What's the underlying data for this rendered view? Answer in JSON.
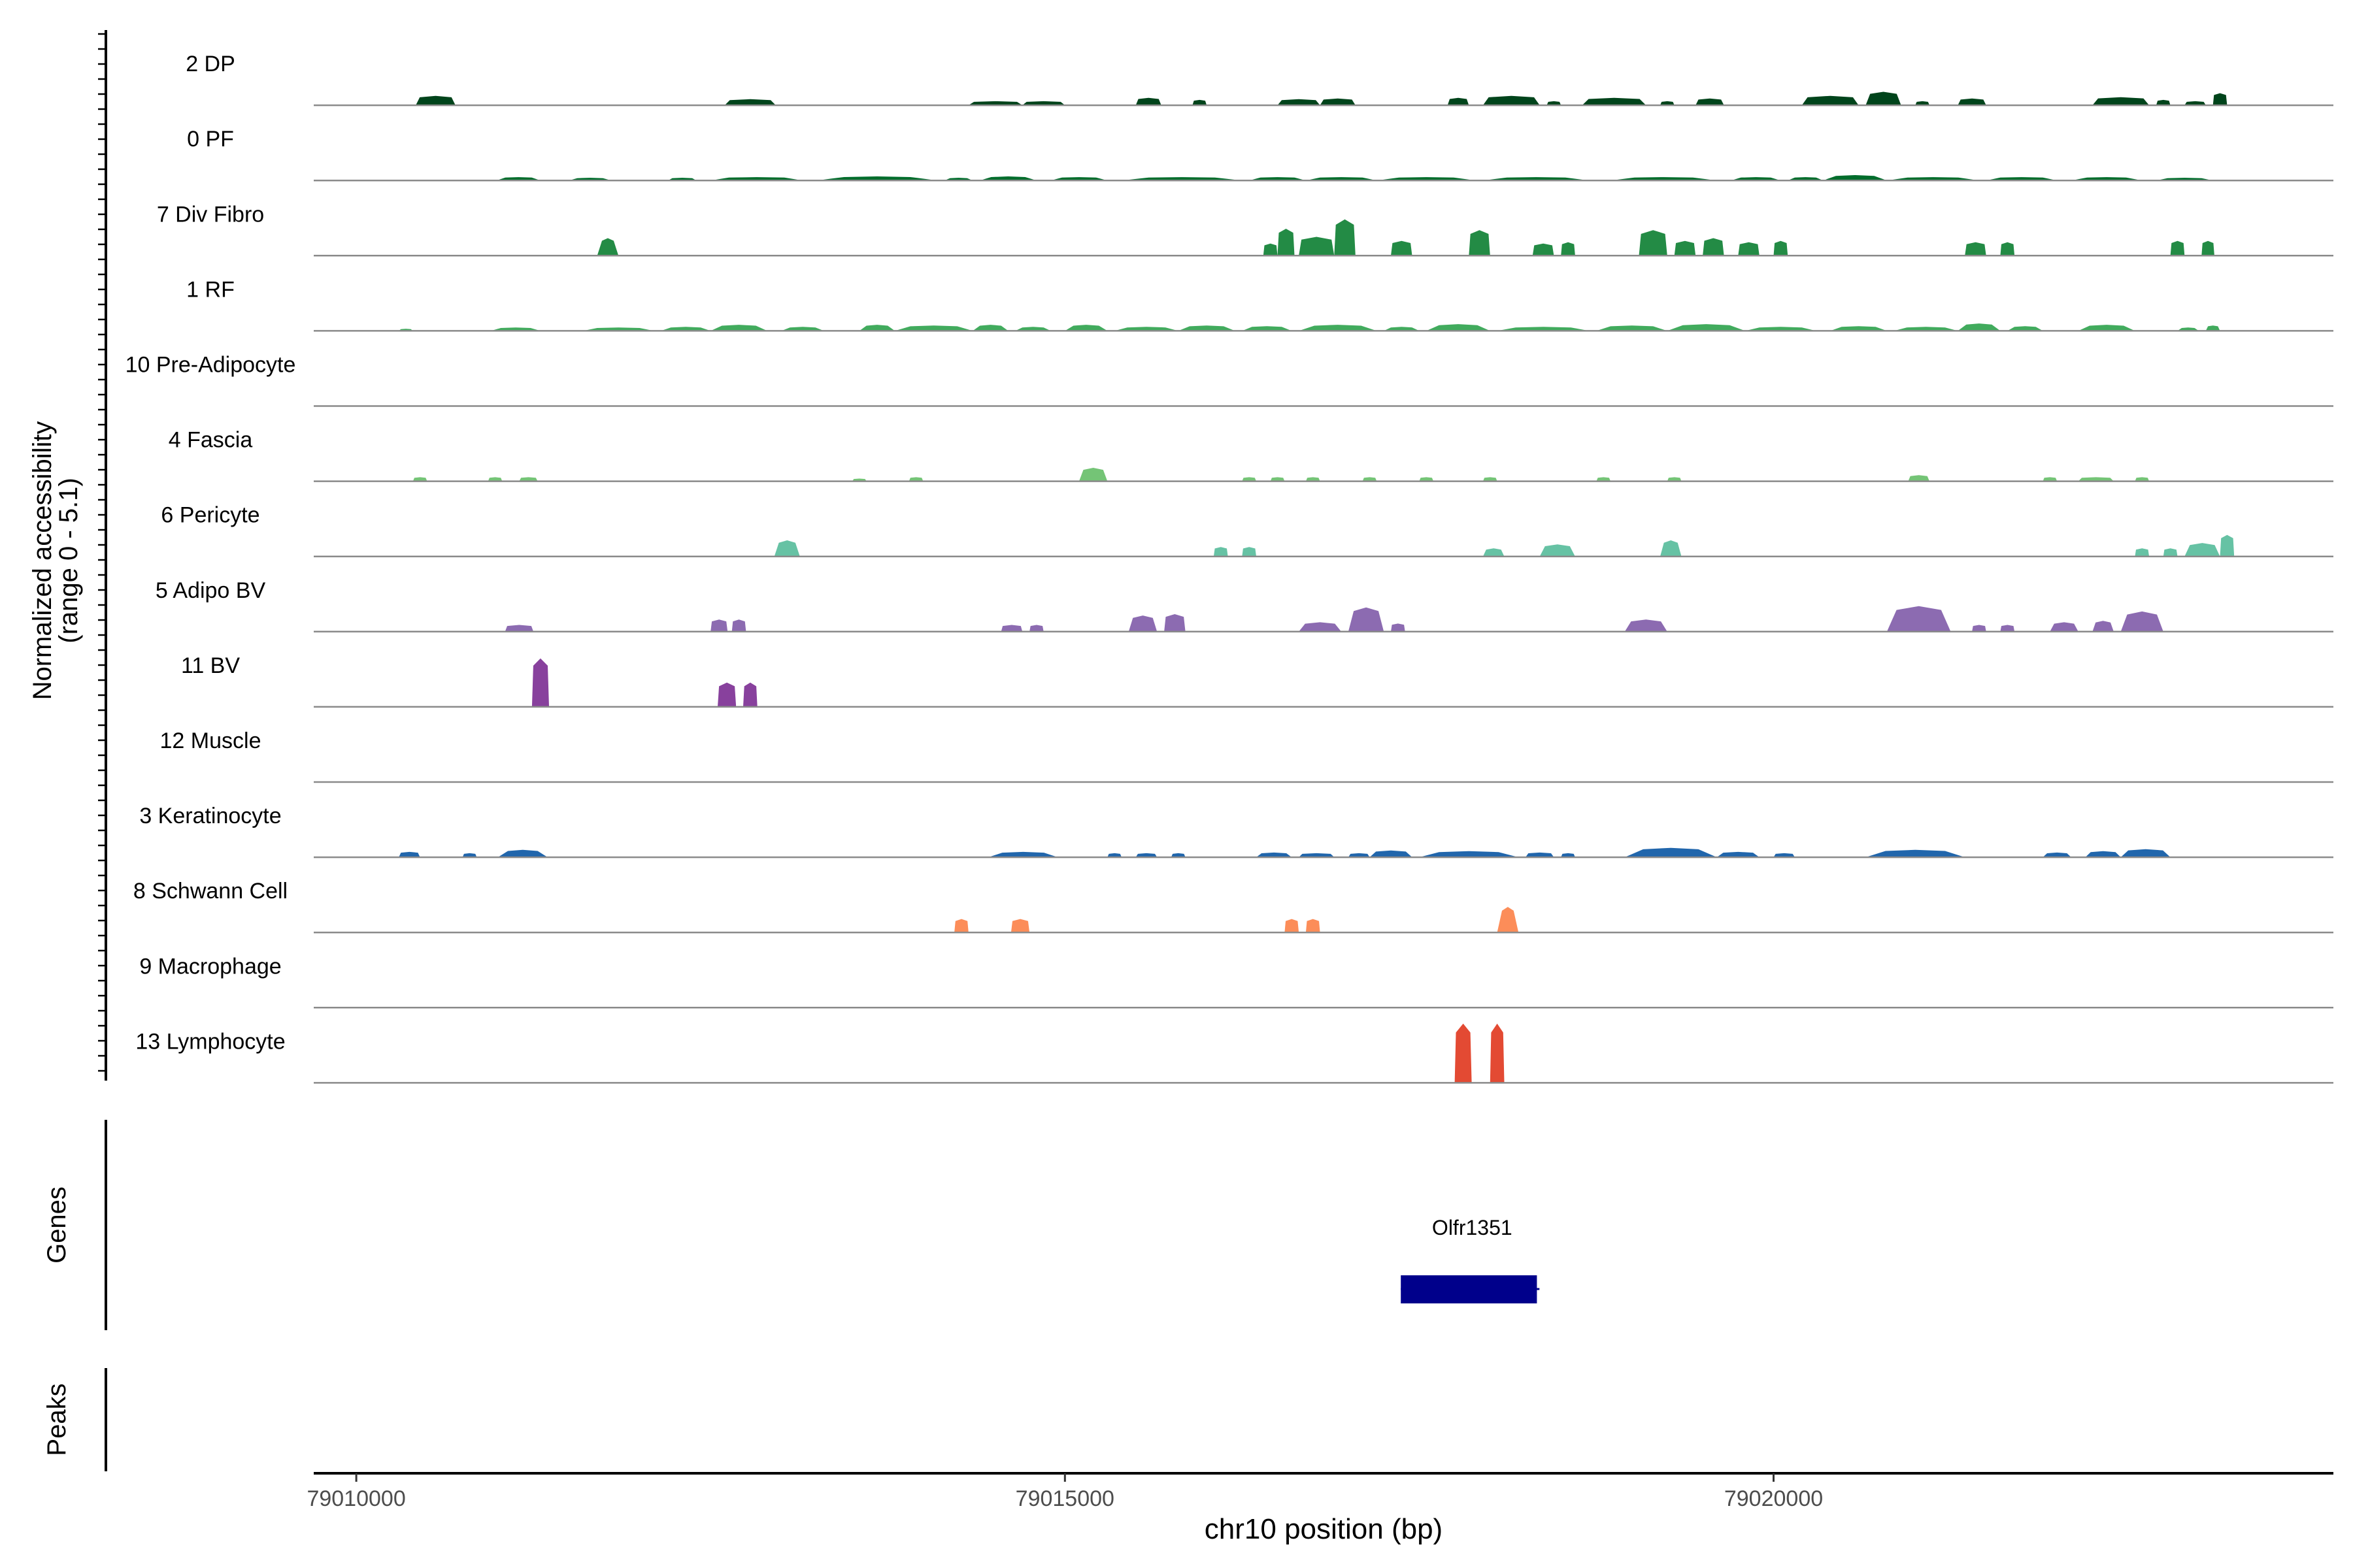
{
  "chart_data": {
    "type": "area",
    "panels": {
      "coverage_ylabel_line1": "Normalized accessibility",
      "coverage_ylabel_line2": "(range 0 - 5.1)",
      "genes_label": "Genes",
      "peaks_label": "Peaks"
    },
    "xlabel": "chr10 position (bp)",
    "xlim": [
      79009700,
      79023950
    ],
    "x_ticks": [
      79010000,
      79015000,
      79020000
    ],
    "ylim": [
      0,
      5.1
    ],
    "tracks": [
      {
        "name": "2 DP",
        "color": "#00441b",
        "peaks": [
          [
            79010420,
            79010700,
            0.7,
            0.2
          ],
          [
            79012600,
            79012960,
            0.45,
            0.2
          ],
          [
            79014320,
            79014700,
            0.3,
            0.2
          ],
          [
            79014700,
            79015000,
            0.3,
            0.2
          ],
          [
            79015500,
            79015680,
            0.55,
            0.2
          ],
          [
            79015900,
            79016000,
            0.4,
            0.2
          ],
          [
            79016500,
            79016800,
            0.45,
            0.2
          ],
          [
            79016800,
            79017050,
            0.5,
            0.2
          ],
          [
            79017700,
            79017850,
            0.55,
            0.2
          ],
          [
            79017950,
            79018350,
            0.7,
            0.2
          ],
          [
            79018400,
            79018500,
            0.3,
            0.2
          ],
          [
            79018650,
            79019100,
            0.55,
            0.2
          ],
          [
            79019200,
            79019300,
            0.3,
            0.2
          ],
          [
            79019450,
            79019650,
            0.5,
            0.2
          ],
          [
            79020200,
            79020600,
            0.7,
            0.2
          ],
          [
            79020650,
            79020900,
            1.0,
            0.25
          ],
          [
            79021000,
            79021100,
            0.3,
            0.2
          ],
          [
            79021300,
            79021500,
            0.5,
            0.2
          ],
          [
            79022250,
            79022650,
            0.6,
            0.2
          ],
          [
            79022700,
            79022800,
            0.4,
            0.2
          ],
          [
            79022900,
            79023050,
            0.3,
            0.2
          ],
          [
            79023100,
            79023200,
            0.9,
            0.15
          ]
        ]
      },
      {
        "name": "0 PF",
        "color": "#006d2c",
        "peaks": [
          [
            79010990,
            79011300,
            0.25,
            0.4
          ],
          [
            79011500,
            79011800,
            0.2,
            0.4
          ],
          [
            79012200,
            79012400,
            0.2,
            0.3
          ],
          [
            79012500,
            79013150,
            0.25,
            0.4
          ],
          [
            79013250,
            79014100,
            0.3,
            0.5
          ],
          [
            79014150,
            79014350,
            0.2,
            0.4
          ],
          [
            79014400,
            79014800,
            0.3,
            0.4
          ],
          [
            79014900,
            79015300,
            0.25,
            0.4
          ],
          [
            79015400,
            79016250,
            0.25,
            0.5
          ],
          [
            79016300,
            79016700,
            0.25,
            0.4
          ],
          [
            79016700,
            79017200,
            0.25,
            0.4
          ],
          [
            79017200,
            79017900,
            0.25,
            0.5
          ],
          [
            79017950,
            79018700,
            0.25,
            0.5
          ],
          [
            79018850,
            79019600,
            0.25,
            0.5
          ],
          [
            79019700,
            79020050,
            0.25,
            0.4
          ],
          [
            79020100,
            79020350,
            0.25,
            0.4
          ],
          [
            79020350,
            79020800,
            0.4,
            0.4
          ],
          [
            79020800,
            79021450,
            0.25,
            0.5
          ],
          [
            79021500,
            79022000,
            0.25,
            0.4
          ],
          [
            79022100,
            79022600,
            0.25,
            0.5
          ],
          [
            79022700,
            79023100,
            0.2,
            0.4
          ]
        ]
      },
      {
        "name": "7 Div Fibro",
        "color": "#238b45",
        "peaks": [
          [
            79011700,
            79011850,
            1.3,
            0.7
          ],
          [
            79016400,
            79016500,
            0.9,
            0.15
          ],
          [
            79016500,
            79016620,
            2.0,
            0.15
          ],
          [
            79016650,
            79016900,
            1.4,
            0.15
          ],
          [
            79016900,
            79017050,
            2.7,
            0.15
          ],
          [
            79017300,
            79017450,
            1.1,
            0.15
          ],
          [
            79017850,
            79018000,
            1.9,
            0.15
          ],
          [
            79018300,
            79018450,
            0.9,
            0.15
          ],
          [
            79018500,
            79018600,
            1.0,
            0.15
          ],
          [
            79019050,
            79019250,
            1.9,
            0.15
          ],
          [
            79019300,
            79019450,
            1.1,
            0.15
          ],
          [
            79019500,
            79019650,
            1.3,
            0.15
          ],
          [
            79019750,
            79019900,
            1.0,
            0.15
          ],
          [
            79020000,
            79020100,
            1.1,
            0.15
          ],
          [
            79021350,
            79021500,
            1.0,
            0.15
          ],
          [
            79021600,
            79021700,
            1.0,
            0.15
          ],
          [
            79022800,
            79022900,
            1.1,
            0.15
          ],
          [
            79023020,
            79023110,
            1.1,
            0.15
          ]
        ]
      },
      {
        "name": "1 RF",
        "color": "#41ab5d",
        "peaks": [
          [
            79010300,
            79010400,
            0.15,
            0.3
          ],
          [
            79010950,
            79011300,
            0.25,
            0.4
          ],
          [
            79011600,
            79012100,
            0.25,
            0.4
          ],
          [
            79012150,
            79012500,
            0.3,
            0.4
          ],
          [
            79012500,
            79012900,
            0.45,
            0.4
          ],
          [
            79013000,
            79013300,
            0.3,
            0.4
          ],
          [
            79013550,
            79013800,
            0.45,
            0.4
          ],
          [
            79013800,
            79014350,
            0.4,
            0.4
          ],
          [
            79014350,
            79014600,
            0.45,
            0.4
          ],
          [
            79014650,
            79014900,
            0.3,
            0.4
          ],
          [
            79015000,
            79015300,
            0.45,
            0.4
          ],
          [
            79015350,
            79015800,
            0.3,
            0.4
          ],
          [
            79015800,
            79016200,
            0.4,
            0.4
          ],
          [
            79016250,
            79016600,
            0.35,
            0.4
          ],
          [
            79016650,
            79017200,
            0.45,
            0.4
          ],
          [
            79017250,
            79017500,
            0.3,
            0.4
          ],
          [
            79017550,
            79018000,
            0.5,
            0.4
          ],
          [
            79018050,
            79018700,
            0.3,
            0.4
          ],
          [
            79018750,
            79019250,
            0.4,
            0.4
          ],
          [
            79019250,
            79019800,
            0.5,
            0.4
          ],
          [
            79019800,
            79020300,
            0.3,
            0.4
          ],
          [
            79020400,
            79020800,
            0.35,
            0.4
          ],
          [
            79020850,
            79021300,
            0.3,
            0.4
          ],
          [
            79021300,
            79021600,
            0.55,
            0.4
          ],
          [
            79021650,
            79021900,
            0.35,
            0.4
          ],
          [
            79022150,
            79022550,
            0.45,
            0.4
          ],
          [
            79022850,
            79023000,
            0.25,
            0.4
          ],
          [
            79023050,
            79023150,
            0.4,
            0.3
          ]
        ]
      },
      {
        "name": "10 Pre-Adipocyte",
        "color": "#74c476",
        "peaks": []
      },
      {
        "name": "4 Fascia",
        "color": "#74c476",
        "peaks": [
          [
            79010400,
            79010500,
            0.3,
            0.2
          ],
          [
            79010930,
            79011030,
            0.3,
            0.2
          ],
          [
            79011150,
            79011280,
            0.3,
            0.2
          ],
          [
            79013500,
            79013600,
            0.2,
            0.2
          ],
          [
            79013900,
            79014000,
            0.3,
            0.2
          ],
          [
            79015100,
            79015300,
            1.0,
            0.3
          ],
          [
            79016250,
            79016350,
            0.3,
            0.2
          ],
          [
            79016450,
            79016550,
            0.3,
            0.2
          ],
          [
            79016700,
            79016800,
            0.3,
            0.2
          ],
          [
            79017100,
            79017200,
            0.3,
            0.2
          ],
          [
            79017500,
            79017600,
            0.3,
            0.2
          ],
          [
            79017950,
            79018050,
            0.3,
            0.2
          ],
          [
            79018750,
            79018850,
            0.3,
            0.2
          ],
          [
            79019250,
            79019350,
            0.3,
            0.2
          ],
          [
            79020950,
            79021100,
            0.45,
            0.2
          ],
          [
            79021900,
            79022000,
            0.3,
            0.2
          ],
          [
            79022150,
            79022400,
            0.3,
            0.2
          ],
          [
            79022550,
            79022650,
            0.3,
            0.2
          ]
        ]
      },
      {
        "name": "6 Pericyte",
        "color": "#66c2a4",
        "peaks": [
          [
            79012950,
            79013130,
            1.2,
            0.35
          ],
          [
            79016050,
            79016150,
            0.7,
            0.15
          ],
          [
            79016250,
            79016350,
            0.7,
            0.15
          ],
          [
            79017950,
            79018100,
            0.6,
            0.3
          ],
          [
            79018350,
            79018600,
            0.9,
            0.3
          ],
          [
            79019200,
            79019350,
            1.2,
            0.35
          ],
          [
            79022550,
            79022650,
            0.6,
            0.15
          ],
          [
            79022750,
            79022850,
            0.6,
            0.15
          ],
          [
            79022900,
            79023150,
            1.0,
            0.3
          ],
          [
            79023150,
            79023250,
            1.6,
            0.15
          ]
        ]
      },
      {
        "name": "5 Adipo BV",
        "color": "#8c6bb1",
        "peaks": [
          [
            79011050,
            79011250,
            0.5,
            0.15
          ],
          [
            79012500,
            79012620,
            0.9,
            0.15
          ],
          [
            79012650,
            79012750,
            0.9,
            0.15
          ],
          [
            79014550,
            79014700,
            0.5,
            0.15
          ],
          [
            79014750,
            79014850,
            0.5,
            0.15
          ],
          [
            79015450,
            79015650,
            1.2,
            0.3
          ],
          [
            79015700,
            79015850,
            1.3,
            0.15
          ],
          [
            79016650,
            79016950,
            0.7,
            0.3
          ],
          [
            79017000,
            79017250,
            1.8,
            0.3
          ],
          [
            79017300,
            79017400,
            0.6,
            0.15
          ],
          [
            79018950,
            79019250,
            0.9,
            0.3
          ],
          [
            79020800,
            79021250,
            1.9,
            0.3
          ],
          [
            79021400,
            79021500,
            0.5,
            0.15
          ],
          [
            79021600,
            79021700,
            0.5,
            0.15
          ],
          [
            79021950,
            79022150,
            0.7,
            0.3
          ],
          [
            79022250,
            79022400,
            0.8,
            0.3
          ],
          [
            79022450,
            79022750,
            1.5,
            0.3
          ]
        ]
      },
      {
        "name": "11 BV",
        "color": "#88419d",
        "peaks": [
          [
            79011240,
            79011360,
            3.6,
            0.15
          ],
          [
            79012550,
            79012680,
            1.8,
            0.15
          ],
          [
            79012730,
            79012830,
            1.8,
            0.15
          ]
        ]
      },
      {
        "name": "12 Muscle",
        "color": "#4a7dbd",
        "peaks": []
      },
      {
        "name": "3 Keratinocyte",
        "color": "#2166ac",
        "peaks": [
          [
            79010300,
            79010450,
            0.4,
            0.2
          ],
          [
            79010750,
            79010850,
            0.3,
            0.2
          ],
          [
            79011000,
            79011350,
            0.55,
            0.4
          ],
          [
            79014460,
            79014950,
            0.4,
            0.4
          ],
          [
            79015300,
            79015400,
            0.3,
            0.2
          ],
          [
            79015500,
            79015650,
            0.3,
            0.2
          ],
          [
            79015750,
            79015850,
            0.3,
            0.2
          ],
          [
            79016350,
            79016600,
            0.35,
            0.3
          ],
          [
            79016650,
            79016900,
            0.3,
            0.2
          ],
          [
            79017000,
            79017150,
            0.3,
            0.2
          ],
          [
            79017150,
            79017450,
            0.5,
            0.3
          ],
          [
            79017500,
            79018200,
            0.45,
            0.4
          ],
          [
            79018250,
            79018450,
            0.35,
            0.2
          ],
          [
            79018500,
            79018600,
            0.3,
            0.2
          ],
          [
            79018950,
            79019600,
            0.7,
            0.4
          ],
          [
            79019600,
            79019900,
            0.4,
            0.3
          ],
          [
            79020000,
            79020150,
            0.3,
            0.2
          ],
          [
            79020650,
            79021350,
            0.55,
            0.4
          ],
          [
            79021900,
            79022100,
            0.35,
            0.3
          ],
          [
            79022200,
            79022450,
            0.45,
            0.3
          ],
          [
            79022450,
            79022800,
            0.6,
            0.3
          ]
        ]
      },
      {
        "name": "8 Schwann Cell",
        "color": "#fc8d59",
        "peaks": [
          [
            79014220,
            79014320,
            1.0,
            0.15
          ],
          [
            79014620,
            79014750,
            1.0,
            0.15
          ],
          [
            79016550,
            79016650,
            1.0,
            0.15
          ],
          [
            79016700,
            79016800,
            1.0,
            0.15
          ],
          [
            79018050,
            79018200,
            1.9,
            0.5
          ]
        ]
      },
      {
        "name": "9 Macrophage",
        "color": "#f4a582",
        "peaks": []
      },
      {
        "name": "13 Lymphocyte",
        "color": "#e34a33",
        "peaks": [
          [
            79017750,
            79017870,
            4.4,
            0.15
          ],
          [
            79018000,
            79018100,
            4.4,
            0.15
          ]
        ]
      }
    ],
    "genes": [
      {
        "name": "Olfr1351",
        "start": 79017370,
        "end": 79018330,
        "color": "#00008b"
      }
    ],
    "peaks": []
  }
}
